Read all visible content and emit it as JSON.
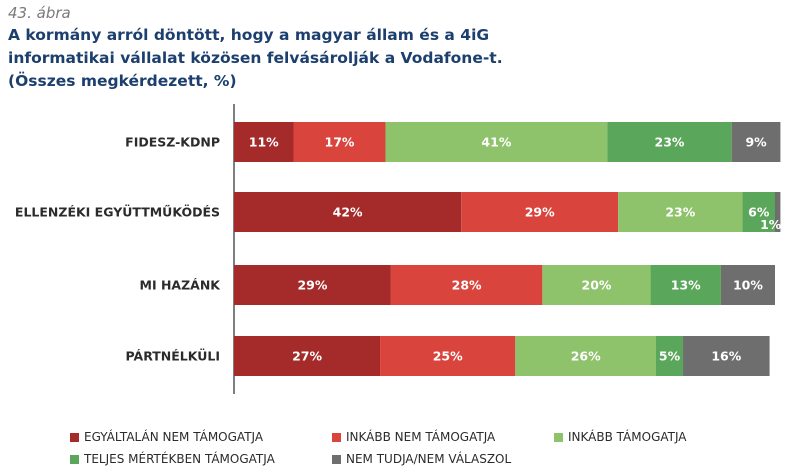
{
  "figure_number": "43. ábra",
  "title": "A kormány arról döntött, hogy a magyar állam és a 4iG informatikai vállalat közösen felvásárolják a Vodafone-t. (Összes megkérdezett, %)",
  "chart_data": {
    "type": "bar",
    "orientation": "horizontal",
    "stacked": true,
    "categories": [
      "FIDESZ-KDNP",
      "ELLENZÉKI EGYÜTTMŰKÖDÉS",
      "MI HAZÁNK",
      "PÁRTNÉLKÜLI"
    ],
    "series": [
      {
        "name": "EGYÁLTALÁN NEM TÁMOGATJA",
        "color": "#a52a2a",
        "values": [
          11,
          42,
          29,
          27
        ],
        "labels": [
          "11%",
          "42%",
          "29%",
          "27%"
        ]
      },
      {
        "name": "INKÁBB NEM TÁMOGATJA",
        "color": "#d9443d",
        "values": [
          17,
          29,
          28,
          25
        ],
        "labels": [
          "17%",
          "29%",
          "28%",
          "25%"
        ]
      },
      {
        "name": "INKÁBB TÁMOGATJA",
        "color": "#8fc36b",
        "values": [
          41,
          23,
          20,
          26
        ],
        "labels": [
          "41%",
          "23%",
          "20%",
          "26%"
        ]
      },
      {
        "name": "TELJES MÉRTÉKBEN TÁMOGATJA",
        "color": "#5aa65a",
        "values": [
          23,
          6,
          13,
          5
        ],
        "labels": [
          "23%",
          "6%",
          "13%",
          "5%"
        ]
      },
      {
        "name": "NEM TUDJA/NEM VÁLASZOL",
        "color": "#6e6e6e",
        "values": [
          9,
          1,
          10,
          16
        ],
        "labels": [
          "9%",
          "1%",
          "10%",
          "16%"
        ]
      }
    ],
    "xlim": [
      0,
      100
    ],
    "grid": false,
    "legend_position": "bottom"
  }
}
